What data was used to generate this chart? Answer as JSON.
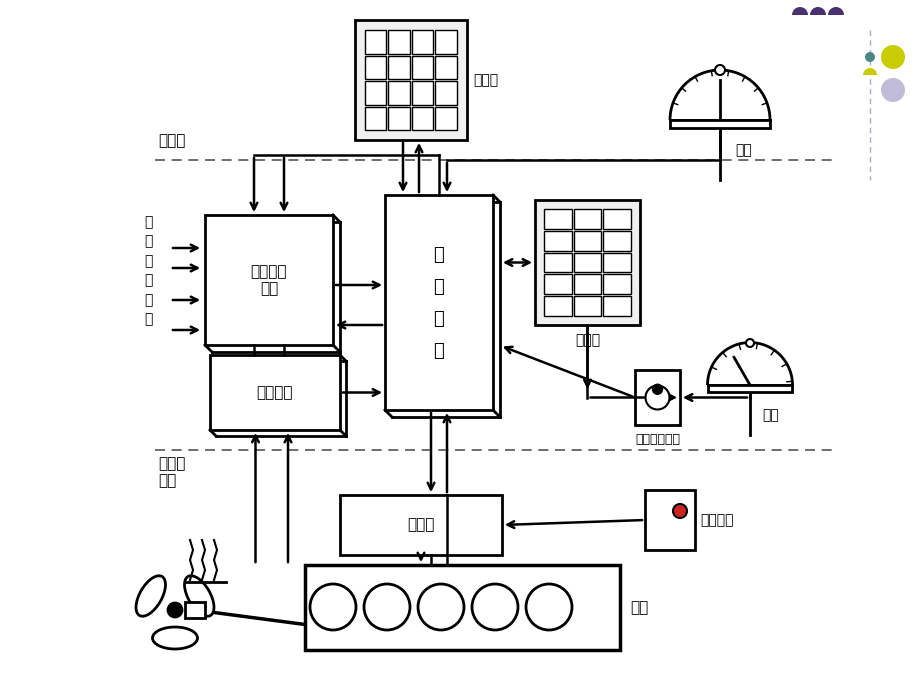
{
  "bg_color": "#ffffff",
  "labels": {
    "jiankong_up": "监控屏",
    "jiankong_mid": "监控屏",
    "che_zhong_up": "车钟",
    "che_zhong_mid": "车钟",
    "yuankong": "遥\n控\n装\n置",
    "anquan": "安全保护\n装置",
    "ceshu": "测速装置",
    "fajian": "阀件箱",
    "zhuji": "主机",
    "jiuwei": "驾驶室",
    "jikongshi": "集控室\n机舱",
    "zhujigongkuang": "主\n机\n工\n况\n参\n数",
    "caozuo": "操作部位切换",
    "jipang": "机旁操纵"
  },
  "yellow_dot_color": "#c8cc00",
  "gray_dot_color": "#c0bcd8",
  "purple_dot_color": "#4a3070",
  "teal_dot_color": "#4a8888"
}
